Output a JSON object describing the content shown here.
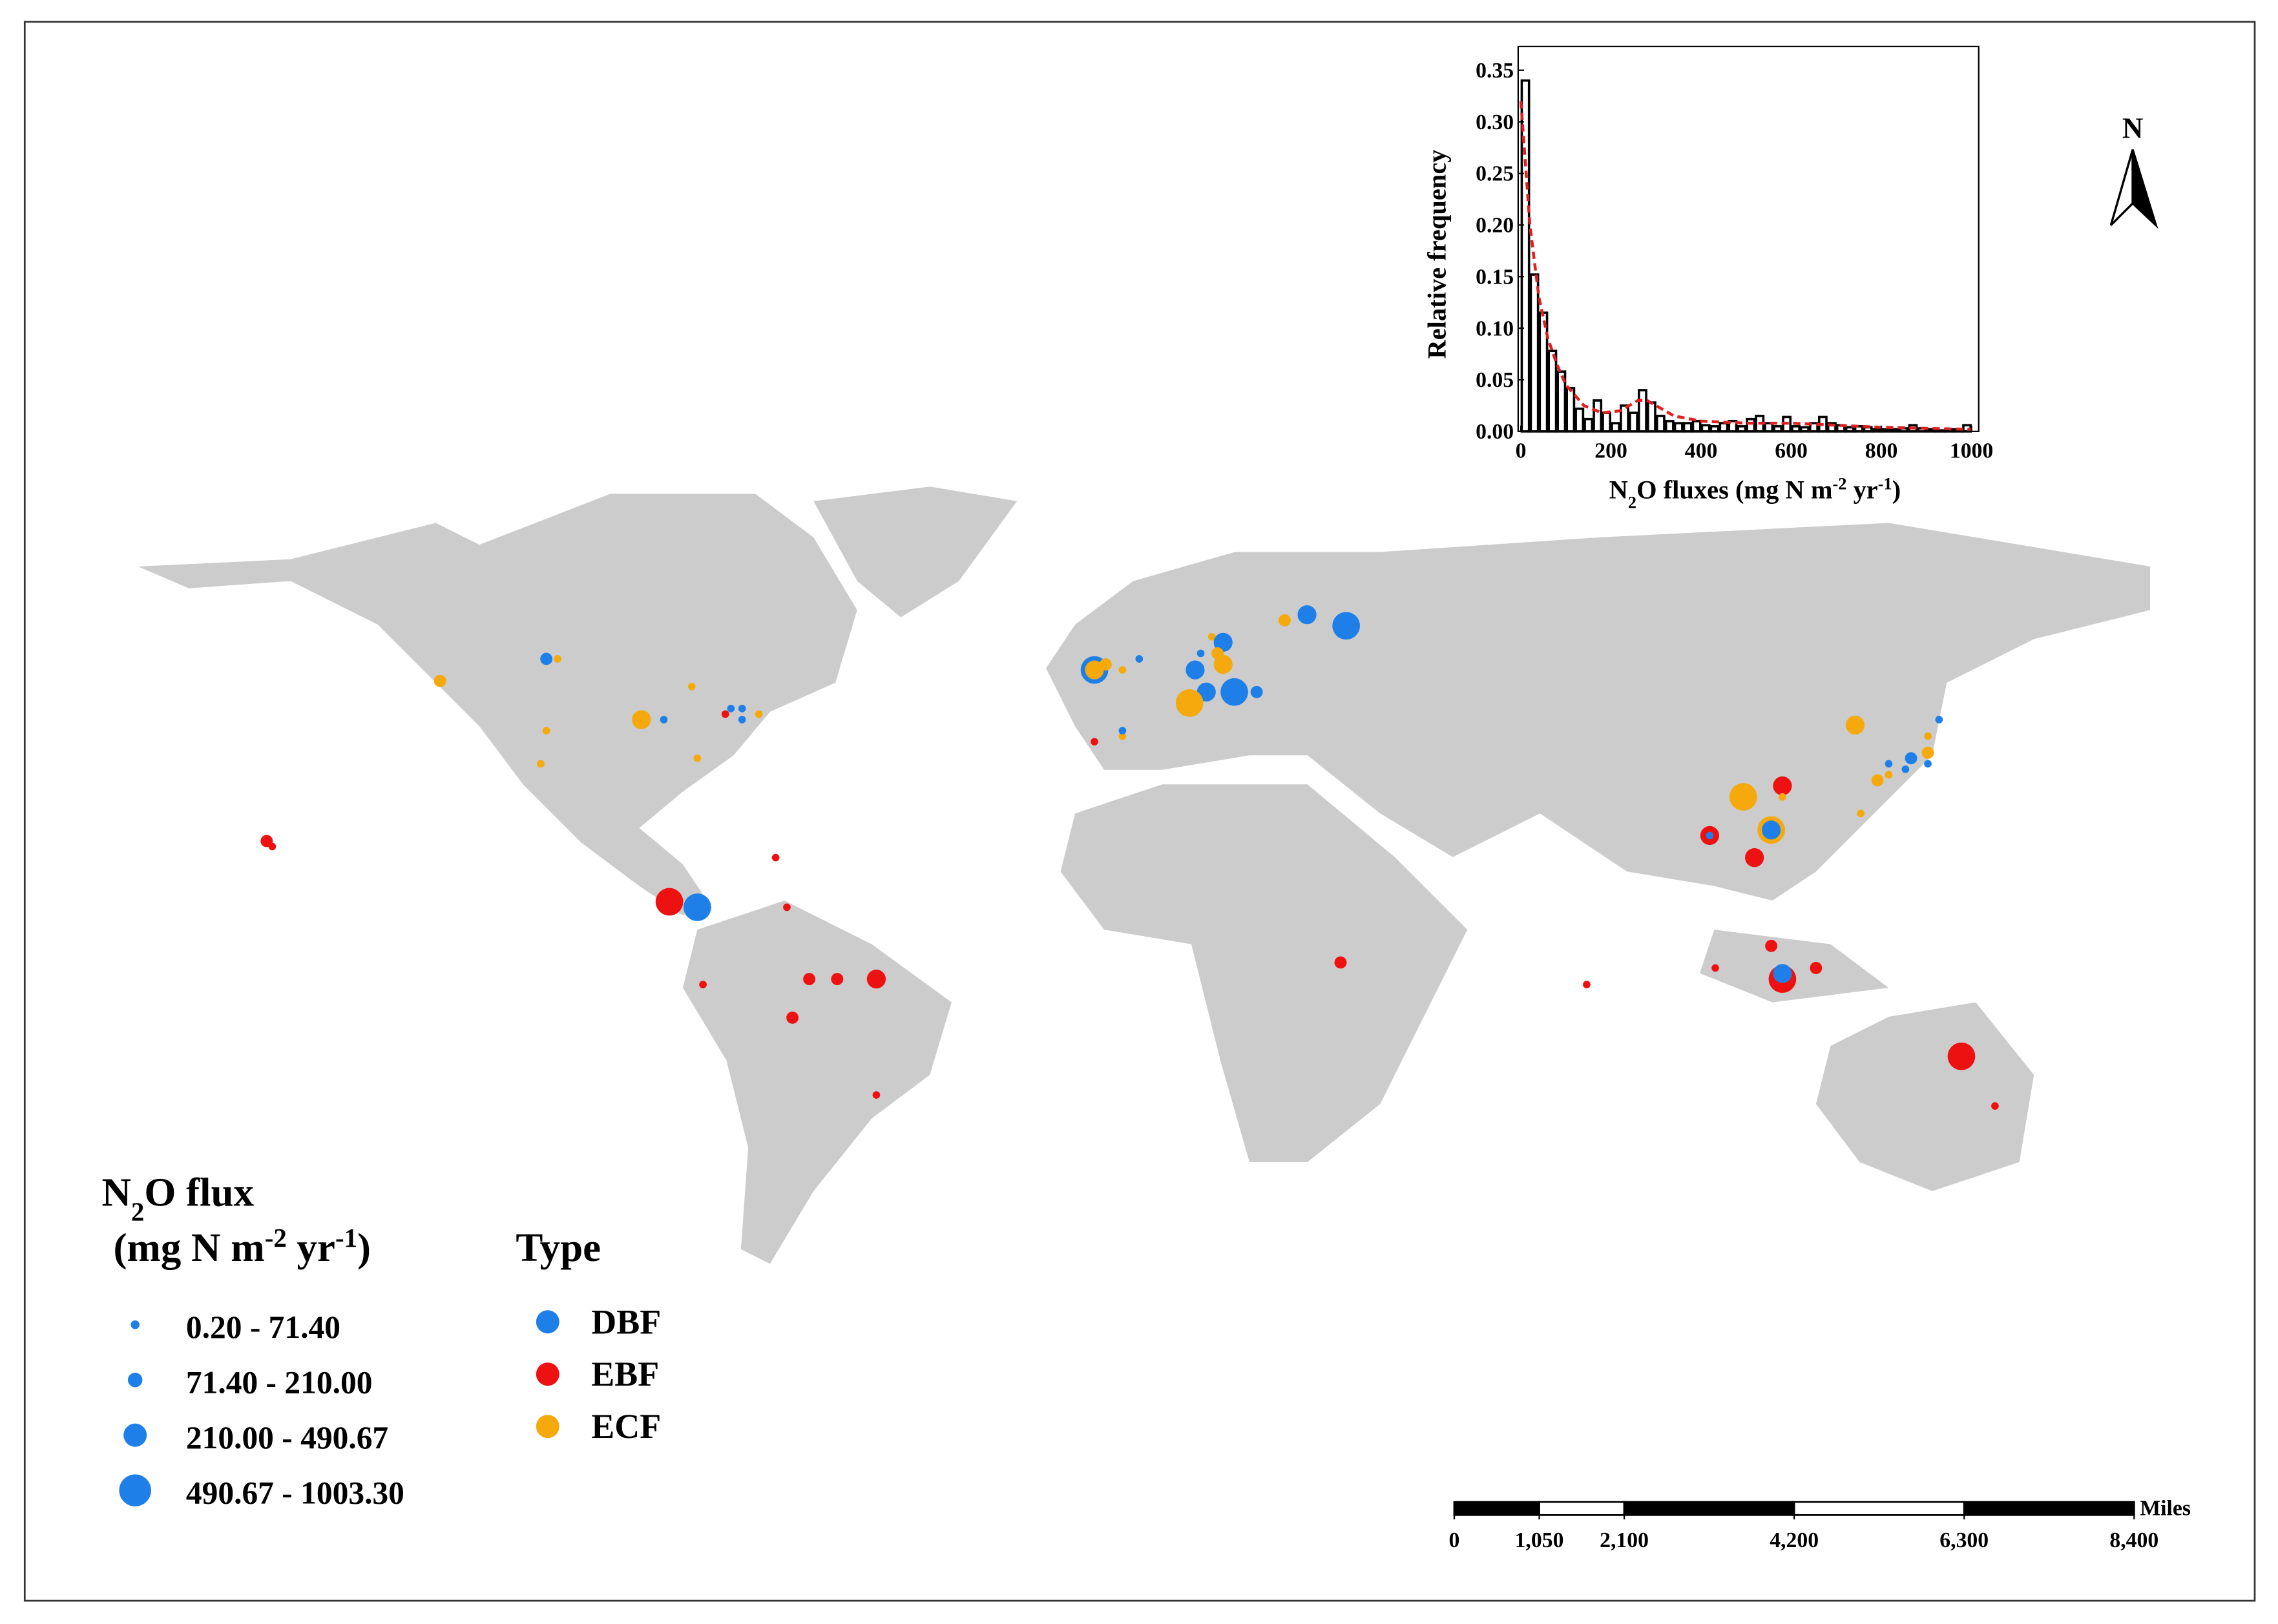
{
  "map": {
    "legend_size": {
      "title": [
        "N",
        "2",
        "O flux"
      ],
      "unit": [
        "(mg N m",
        "-2",
        " yr",
        "-1",
        ")"
      ],
      "classes": [
        "0.20 - 71.40",
        "71.40 - 210.00",
        "210.00 - 490.67",
        "490.67 - 1003.30"
      ]
    },
    "legend_type": {
      "title": "Type",
      "types": [
        {
          "name": "DBF",
          "color": "#1e7fe8"
        },
        {
          "name": "EBF",
          "color": "#ee1111"
        },
        {
          "name": "ECF",
          "color": "#f5a90c"
        }
      ]
    },
    "north": "N",
    "scale_bar": {
      "unit": "Miles",
      "xlim": [
        0,
        8400
      ],
      "ticks": [
        0,
        {
          "value": 1050,
          "label": "1,050"
        },
        {
          "value": 2100,
          "label": "2,100"
        },
        {
          "value": 4200,
          "label": "4,200"
        },
        {
          "value": 6300,
          "label": "6,300"
        },
        {
          "value": 8400,
          "label": "8,400"
        }
      ]
    },
    "sites": {
      "lon": [
        -107,
        -105,
        -126,
        -90,
        -86,
        -81,
        -107,
        -108,
        -80,
        -74,
        -75,
        -72,
        -72,
        -69,
        -157,
        -156,
        -85,
        -80,
        -66,
        -64,
        -79,
        -60,
        -55,
        -48,
        -63,
        -48,
        -9,
        -9,
        -7,
        -4,
        -1,
        -9,
        -4,
        -4,
        10,
        12,
        14,
        13,
        9,
        14,
        11,
        8,
        16,
        20,
        25,
        29,
        36,
        35,
        79,
        107,
        114,
        114,
        101,
        101,
        112,
        112,
        109,
        127,
        142,
        140,
        133,
        136,
        137,
        140,
        140,
        131,
        133,
        128,
        112,
        102,
        114,
        114,
        120,
        146,
        152
      ],
      "lat": [
        53,
        53,
        49,
        42,
        42,
        48,
        40,
        34,
        35,
        44,
        43,
        42,
        44,
        43,
        20,
        19,
        9,
        8,
        17,
        8,
        -6,
        -5,
        -5,
        -5,
        -12,
        -26,
        51,
        51,
        52,
        51,
        53,
        38,
        39,
        40,
        54,
        57,
        56,
        54,
        51,
        52,
        47,
        45,
        47,
        47,
        60,
        61,
        59,
        -2,
        -6,
        28,
        30,
        28,
        21,
        21,
        22,
        22,
        17,
        41,
        42,
        39,
        34,
        33,
        35,
        34,
        36,
        31,
        32,
        25,
        1,
        -3,
        -5,
        -4,
        -3,
        -19,
        -28
      ],
      "type": [
        0,
        2,
        2,
        2,
        0,
        2,
        2,
        2,
        2,
        0,
        1,
        0,
        0,
        2,
        1,
        1,
        1,
        0,
        1,
        1,
        1,
        1,
        1,
        1,
        1,
        1,
        0,
        2,
        2,
        2,
        0,
        1,
        2,
        0,
        0,
        2,
        0,
        2,
        0,
        2,
        0,
        2,
        0,
        0,
        2,
        0,
        0,
        1,
        1,
        2,
        1,
        2,
        1,
        0,
        2,
        0,
        1,
        2,
        0,
        2,
        0,
        0,
        0,
        0,
        2,
        2,
        2,
        2,
        1,
        1,
        1,
        0,
        1,
        1,
        1
      ],
      "class": [
        1,
        0,
        1,
        2,
        0,
        0,
        0,
        0,
        0,
        0,
        0,
        0,
        0,
        0,
        1,
        0,
        3,
        3,
        0,
        0,
        0,
        1,
        1,
        2,
        1,
        0,
        3,
        2,
        1,
        0,
        0,
        0,
        0,
        0,
        0,
        0,
        2,
        1,
        2,
        2,
        2,
        3,
        3,
        1,
        1,
        2,
        3,
        1,
        0,
        3,
        2,
        0,
        2,
        0,
        3,
        2,
        2,
        2,
        0,
        0,
        0,
        0,
        1,
        0,
        1,
        1,
        0,
        0,
        1,
        0,
        3,
        2,
        1,
        3,
        0
      ]
    }
  },
  "chart_data": {
    "type": "histogram",
    "xlabel": [
      "N",
      "2",
      "O fluxes (mg N m",
      "-2",
      " yr",
      "-1",
      ")"
    ],
    "ylabel": "Relative frequency",
    "bins": [
      0,
      20,
      40,
      60,
      80,
      100,
      120,
      140,
      160,
      180,
      200,
      220,
      240,
      260,
      280,
      300,
      320,
      340,
      360,
      380,
      400,
      420,
      440,
      460,
      480,
      500,
      520,
      540,
      560,
      580,
      600,
      620,
      640,
      660,
      680,
      700,
      720,
      740,
      760,
      780,
      800,
      820,
      840,
      860,
      880,
      900,
      920,
      940,
      960,
      980,
      1000
    ],
    "values": [
      0.34,
      0.152,
      0.115,
      0.078,
      0.058,
      0.042,
      0.022,
      0.012,
      0.03,
      0.018,
      0.008,
      0.025,
      0.018,
      0.04,
      0.028,
      0.015,
      0.01,
      0.008,
      0.008,
      0.01,
      0.006,
      0.005,
      0.008,
      0.01,
      0.005,
      0.012,
      0.015,
      0.008,
      0.005,
      0.014,
      0.005,
      0.004,
      0.008,
      0.014,
      0.008,
      0.006,
      0.004,
      0.005,
      0.004,
      0.002,
      0.002,
      0.002,
      0.003,
      0.006,
      0.003,
      0.002,
      0.001,
      0.002,
      0.002,
      0.006
    ],
    "color": "#000000",
    "fit_curve": {
      "color": "#e02020",
      "x": [
        0,
        20,
        40,
        60,
        80,
        100,
        140,
        180,
        220,
        260,
        280,
        300,
        340,
        400,
        500,
        600,
        700,
        800,
        900,
        1000
      ],
      "values": [
        0.32,
        0.2,
        0.13,
        0.09,
        0.065,
        0.045,
        0.025,
        0.018,
        0.02,
        0.03,
        0.03,
        0.025,
        0.015,
        0.01,
        0.008,
        0.008,
        0.006,
        0.004,
        0.003,
        0.002
      ]
    },
    "xlim": [
      -6,
      1016
    ],
    "ylim": [
      0,
      0.373
    ],
    "xticks": [
      0,
      200,
      400,
      600,
      800,
      1000
    ],
    "yticks": [
      {
        "value": 0,
        "label": "0.00"
      },
      {
        "value": 0.05,
        "label": "0.05"
      },
      {
        "value": 0.1,
        "label": "0.10"
      },
      {
        "value": 0.15,
        "label": "0.15"
      },
      {
        "value": 0.2,
        "label": "0.20"
      },
      {
        "value": 0.25,
        "label": "0.25"
      },
      {
        "value": 0.3,
        "label": "0.30"
      },
      {
        "value": 0.35,
        "label": "0.35"
      }
    ]
  }
}
